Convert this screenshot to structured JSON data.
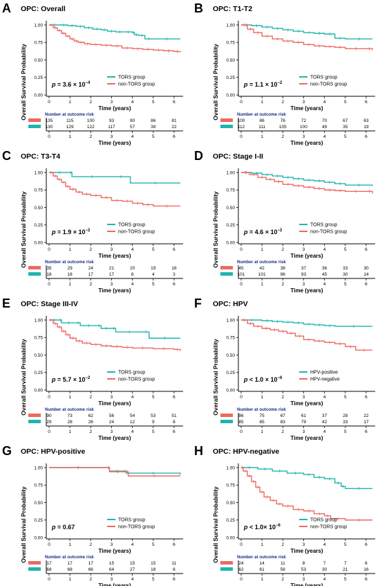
{
  "colors": {
    "tors": "#1fb5ad",
    "non": "#ec6a60"
  },
  "shared": {
    "y_label": "Overall Survival Probability",
    "x_label": "Time (years)",
    "risk_title": "Number at outcome risk",
    "y_ticks": [
      "0.00",
      "0.25",
      "0.50",
      "0.75",
      "1.00"
    ],
    "x_ticks": [
      "0",
      "1",
      "2",
      "3",
      "4",
      "5",
      "6"
    ]
  },
  "chart_data": [
    {
      "type": "line",
      "panel": "A",
      "title": "OPC: Overall",
      "xlabel": "Time (years)",
      "ylabel": "Overall Survival Probability",
      "xlim": [
        0,
        6.3
      ],
      "ylim": [
        0,
        1
      ],
      "p_value": "p = 3.6 × 10",
      "p_exp": "−4",
      "legend": [
        "TORS group",
        "non-TORS group"
      ],
      "series": [
        {
          "name": "TORS group",
          "x": [
            0,
            0.5,
            0.9,
            1.3,
            1.7,
            2.1,
            2.5,
            2.8,
            3.2,
            3.6,
            4.0,
            4.1,
            4.3,
            4.6,
            5.0,
            6.3
          ],
          "y": [
            1,
            1,
            0.99,
            0.98,
            0.96,
            0.94,
            0.93,
            0.91,
            0.9,
            0.9,
            0.89,
            0.86,
            0.85,
            0.8,
            0.8,
            0.8
          ]
        },
        {
          "name": "non-TORS group",
          "x": [
            0,
            0.2,
            0.4,
            0.6,
            0.8,
            1.0,
            1.2,
            1.4,
            1.7,
            2.0,
            2.5,
            3.0,
            3.5,
            4.0,
            4.5,
            5.0,
            5.5,
            6.0,
            6.3
          ],
          "y": [
            1,
            0.96,
            0.92,
            0.88,
            0.84,
            0.8,
            0.77,
            0.75,
            0.73,
            0.72,
            0.71,
            0.7,
            0.67,
            0.66,
            0.65,
            0.64,
            0.63,
            0.62,
            0.61
          ]
        }
      ],
      "risk": [
        {
          "name": "non-TORS group",
          "values": [
            "135",
            "115",
            "100",
            "93",
            "90",
            "86",
            "81"
          ]
        },
        {
          "name": "TORS group",
          "values": [
            "130",
            "129",
            "122",
            "117",
            "57",
            "39",
            "22"
          ]
        }
      ]
    },
    {
      "type": "line",
      "panel": "B",
      "title": "OPC: T1-T2",
      "xlabel": "Time (years)",
      "ylabel": "Overall Survival Probability",
      "xlim": [
        0,
        6.3
      ],
      "ylim": [
        0,
        1
      ],
      "p_value": "p = 1.1 × 10",
      "p_exp": "−2",
      "legend": [
        "TORS group",
        "non-TORS group"
      ],
      "series": [
        {
          "name": "TORS group",
          "x": [
            0,
            0.5,
            1.0,
            1.5,
            2.0,
            2.5,
            3.0,
            3.5,
            4.0,
            4.5,
            5.0,
            6.3
          ],
          "y": [
            1,
            0.99,
            0.97,
            0.95,
            0.93,
            0.91,
            0.89,
            0.88,
            0.87,
            0.81,
            0.8,
            0.8
          ]
        },
        {
          "name": "non-TORS group",
          "x": [
            0,
            0.3,
            0.6,
            1.0,
            1.5,
            2.0,
            2.5,
            3.0,
            3.5,
            4.0,
            4.5,
            5.0,
            6.0,
            6.3
          ],
          "y": [
            1,
            0.94,
            0.89,
            0.84,
            0.8,
            0.77,
            0.75,
            0.72,
            0.7,
            0.69,
            0.68,
            0.66,
            0.66,
            0.64
          ]
        }
      ],
      "risk": [
        {
          "name": "non-TORS group",
          "values": [
            "100",
            "86",
            "76",
            "72",
            "70",
            "67",
            "63"
          ]
        },
        {
          "name": "TORS group",
          "values": [
            "112",
            "111",
            "105",
            "100",
            "49",
            "35",
            "19"
          ]
        }
      ]
    },
    {
      "type": "line",
      "panel": "C",
      "title": "OPC: T3-T4",
      "xlabel": "Time (years)",
      "ylabel": "Overall Survival Probability",
      "xlim": [
        0,
        6.3
      ],
      "ylim": [
        0,
        1
      ],
      "p_value": "p = 1.9 × 10",
      "p_exp": "−2",
      "legend": [
        "TORS group",
        "non-TORS group"
      ],
      "series": [
        {
          "name": "TORS group",
          "x": [
            0,
            1.0,
            1.1,
            3.0,
            3.9,
            6.3
          ],
          "y": [
            1,
            1,
            0.94,
            0.94,
            0.85,
            0.85
          ]
        },
        {
          "name": "non-TORS group",
          "x": [
            0,
            0.2,
            0.4,
            0.6,
            0.8,
            1.0,
            1.3,
            1.6,
            2.0,
            2.5,
            3.0,
            3.5,
            4.0,
            4.5,
            5.0,
            6.3
          ],
          "y": [
            1,
            0.95,
            0.9,
            0.86,
            0.8,
            0.76,
            0.72,
            0.69,
            0.67,
            0.64,
            0.6,
            0.59,
            0.56,
            0.54,
            0.52,
            0.52
          ]
        }
      ],
      "risk": [
        {
          "name": "non-TORS group",
          "values": [
            "35",
            "29",
            "24",
            "21",
            "20",
            "19",
            "18"
          ]
        },
        {
          "name": "TORS group",
          "values": [
            "18",
            "18",
            "17",
            "17",
            "8",
            "4",
            "3"
          ]
        }
      ]
    },
    {
      "type": "line",
      "panel": "D",
      "title": "OPC: Stage I-II",
      "xlabel": "Time (years)",
      "ylabel": "Overall Survival Probability",
      "xlim": [
        0,
        6.3
      ],
      "ylim": [
        0,
        1
      ],
      "p_value": "p = 4.6 × 10",
      "p_exp": "−2",
      "legend": [
        "TORS group",
        "non-TORS group"
      ],
      "series": [
        {
          "name": "TORS group",
          "x": [
            0,
            0.5,
            1.0,
            1.5,
            2.0,
            2.5,
            3.0,
            3.5,
            4.0,
            4.5,
            5.0,
            6.3
          ],
          "y": [
            1,
            0.99,
            0.97,
            0.95,
            0.93,
            0.91,
            0.89,
            0.88,
            0.86,
            0.84,
            0.82,
            0.81
          ]
        },
        {
          "name": "non-TORS group",
          "x": [
            0,
            0.4,
            0.8,
            1.2,
            1.6,
            2.0,
            2.5,
            3.0,
            3.5,
            4.0,
            4.5,
            5.0,
            6.0,
            6.3
          ],
          "y": [
            1,
            0.97,
            0.93,
            0.9,
            0.87,
            0.83,
            0.81,
            0.79,
            0.77,
            0.75,
            0.74,
            0.73,
            0.73,
            0.7
          ]
        }
      ],
      "risk": [
        {
          "name": "non-TORS group",
          "values": [
            "45",
            "42",
            "38",
            "37",
            "36",
            "33",
            "30"
          ]
        },
        {
          "name": "TORS group",
          "values": [
            "101",
            "101",
            "96",
            "93",
            "45",
            "30",
            "14"
          ]
        }
      ]
    },
    {
      "type": "line",
      "panel": "E",
      "title": "OPC: Stage III-IV",
      "xlabel": "Time (years)",
      "ylabel": "Overall Survival Probability",
      "xlim": [
        0,
        6.3
      ],
      "ylim": [
        0,
        1
      ],
      "p_value": "p = 5.7 × 10",
      "p_exp": "−2",
      "legend": [
        "TORS group",
        "non-TORS group"
      ],
      "series": [
        {
          "name": "TORS group",
          "x": [
            0,
            0.5,
            0.6,
            1.3,
            1.5,
            2.3,
            2.5,
            3.0,
            3.2,
            4.5,
            4.8,
            6.3
          ],
          "y": [
            1,
            1,
            0.96,
            0.96,
            0.92,
            0.92,
            0.88,
            0.88,
            0.83,
            0.83,
            0.74,
            0.74
          ]
        },
        {
          "name": "non-TORS group",
          "x": [
            0,
            0.2,
            0.4,
            0.6,
            0.8,
            1.0,
            1.3,
            1.6,
            2.0,
            2.5,
            3.0,
            3.5,
            4.0,
            5.0,
            6.0,
            6.3
          ],
          "y": [
            1,
            0.95,
            0.9,
            0.84,
            0.79,
            0.74,
            0.7,
            0.67,
            0.65,
            0.63,
            0.62,
            0.61,
            0.6,
            0.59,
            0.58,
            0.56
          ]
        }
      ],
      "risk": [
        {
          "name": "non-TORS group",
          "values": [
            "90",
            "73",
            "62",
            "56",
            "54",
            "53",
            "51"
          ]
        },
        {
          "name": "TORS group",
          "values": [
            "29",
            "28",
            "26",
            "24",
            "12",
            "9",
            "8"
          ]
        }
      ]
    },
    {
      "type": "line",
      "panel": "F",
      "title": "OPC: HPV",
      "xlabel": "Time (years)",
      "ylabel": "Overall Survival Probability",
      "xlim": [
        0,
        6.3
      ],
      "ylim": [
        0,
        1
      ],
      "p_value": "p < 1.0 × 10",
      "p_exp": "−6",
      "legend": [
        "HPV-positive",
        "HPV-negative"
      ],
      "series": [
        {
          "name": "HPV-positive",
          "x": [
            0,
            1.0,
            1.5,
            2.0,
            2.5,
            3.0,
            3.5,
            4.0,
            4.5,
            6.3
          ],
          "y": [
            1,
            0.99,
            0.98,
            0.97,
            0.96,
            0.94,
            0.93,
            0.92,
            0.91,
            0.91
          ]
        },
        {
          "name": "HPV-negative",
          "x": [
            0,
            0.3,
            0.6,
            1.0,
            1.4,
            1.8,
            2.2,
            2.6,
            3.0,
            3.5,
            4.0,
            4.5,
            5.0,
            5.5,
            6.3
          ],
          "y": [
            1,
            0.95,
            0.91,
            0.88,
            0.86,
            0.84,
            0.81,
            0.77,
            0.72,
            0.7,
            0.68,
            0.66,
            0.62,
            0.57,
            0.57
          ]
        }
      ],
      "risk": [
        {
          "name": "HPV-negative",
          "values": [
            "86",
            "75",
            "67",
            "61",
            "37",
            "28",
            "22"
          ]
        },
        {
          "name": "HPV-positive",
          "values": [
            "85",
            "85",
            "83",
            "79",
            "42",
            "33",
            "17"
          ]
        }
      ]
    },
    {
      "type": "line",
      "panel": "G",
      "title": "OPC: HPV-positive",
      "xlabel": "Time (years)",
      "ylabel": "Overall Survival Probability",
      "xlim": [
        0,
        6.3
      ],
      "ylim": [
        0,
        1
      ],
      "p_value": "p = 0.67",
      "p_exp": "",
      "legend": [
        "TORS group",
        "non-TORS group"
      ],
      "series": [
        {
          "name": "TORS group",
          "x": [
            0,
            2.8,
            2.9,
            3.6,
            3.7,
            6.3
          ],
          "y": [
            1,
            1,
            0.95,
            0.95,
            0.92,
            0.9
          ]
        },
        {
          "name": "non-TORS group",
          "x": [
            0,
            2.8,
            2.9,
            3.7,
            3.8,
            6.3
          ],
          "y": [
            1,
            1,
            0.94,
            0.94,
            0.88,
            0.88
          ]
        }
      ],
      "risk": [
        {
          "name": "non-TORS group",
          "values": [
            "17",
            "17",
            "17",
            "15",
            "15",
            "15",
            "11"
          ]
        },
        {
          "name": "TORS group",
          "values": [
            "68",
            "68",
            "66",
            "64",
            "27",
            "18",
            "6"
          ]
        }
      ]
    },
    {
      "type": "line",
      "panel": "H",
      "title": "OPC: HPV-negative",
      "xlabel": "Time (years)",
      "ylabel": "Overall Survival Probability",
      "xlim": [
        0,
        6.3
      ],
      "ylim": [
        0,
        1
      ],
      "p_value": "p < 1.0× 10",
      "p_exp": "−6",
      "legend": [
        "TORS group",
        "non-TORS group"
      ],
      "series": [
        {
          "name": "TORS group",
          "x": [
            0,
            0.8,
            1.5,
            2.2,
            3.0,
            3.5,
            4.0,
            4.5,
            4.8,
            5.0,
            6.3
          ],
          "y": [
            1,
            0.98,
            0.95,
            0.92,
            0.9,
            0.86,
            0.84,
            0.78,
            0.73,
            0.7,
            0.7
          ]
        },
        {
          "name": "non-TORS group",
          "x": [
            0,
            0.1,
            0.3,
            0.5,
            0.7,
            0.9,
            1.1,
            1.4,
            1.7,
            2.0,
            2.5,
            3.0,
            3.5,
            4.0,
            4.3,
            5.0,
            6.3
          ],
          "y": [
            1,
            0.95,
            0.88,
            0.8,
            0.72,
            0.65,
            0.58,
            0.53,
            0.48,
            0.45,
            0.4,
            0.38,
            0.34,
            0.31,
            0.27,
            0.25,
            0.25
          ]
        }
      ],
      "risk": [
        {
          "name": "non-TORS group",
          "values": [
            "24",
            "14",
            "11",
            "8",
            "7",
            "7",
            "6"
          ]
        },
        {
          "name": "TORS group",
          "values": [
            "62",
            "61",
            "56",
            "53",
            "30",
            "21",
            "16"
          ]
        }
      ]
    }
  ]
}
